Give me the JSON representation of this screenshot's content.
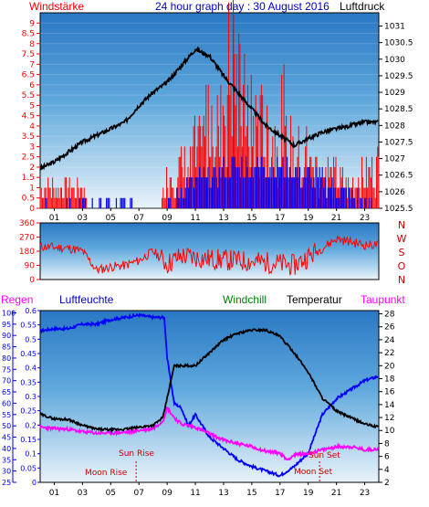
{
  "title": "24 hour graph day : 30 August 2016",
  "colors": {
    "wind": "#ff0000",
    "gust": "#0000ff",
    "pressure": "#000000",
    "direction": "#ff0000",
    "humidity": "#0000ff",
    "windchill": "#000000",
    "temperature": "#000000",
    "dewpoint": "#ff00ff",
    "rain": "#ff0000",
    "annotation": "#cc0000",
    "axis_wind": "#ff0000",
    "axis_humidity": "#0000ff",
    "axis_rain": "#0000ff",
    "axis_temp": "#000000",
    "dir_letters": "#cc0000"
  },
  "labels": {
    "windstaerke": "Windstärke",
    "luftdruck": "Luftdruck",
    "regen": "Regen",
    "luftfeuchte": "Luftfeuchte",
    "windchill": "Windchill",
    "temperatur": "Temperatur",
    "taupunkt": "Taupunkt"
  },
  "legend_colors": {
    "windstaerke": "#ff0000",
    "luftdruck": "#000000",
    "regen": "#ff00ff",
    "luftfeuchte": "#0000cc",
    "windchill": "#008000",
    "temperatur": "#000000",
    "taupunkt": "#ff00ff"
  },
  "chart_data": [
    {
      "type": "line",
      "name": "wind-pressure",
      "x_ticks": [
        "01",
        "03",
        "05",
        "07",
        "09",
        "11",
        "13",
        "15",
        "17",
        "19",
        "21",
        "23"
      ],
      "xlim": [
        0,
        24
      ],
      "y_left_ticks": [
        "0",
        "0.5",
        "1",
        "1.5",
        "2",
        "2.5",
        "3",
        "3.5",
        "4",
        "4.5",
        "5",
        "5.5",
        "6",
        "6.5",
        "7",
        "7.5",
        "8",
        "8.5",
        "9"
      ],
      "y_left_lim": [
        0,
        9.5
      ],
      "y_right_ticks": [
        "1025.5",
        "1026",
        "1026.5",
        "1027",
        "1027.5",
        "1028",
        "1028.5",
        "1029",
        "1029.5",
        "1030",
        "1030.5",
        "1031"
      ],
      "y_right_lim": [
        1025.5,
        1031.4
      ],
      "pressure": [
        [
          0,
          1026.7
        ],
        [
          1,
          1026.9
        ],
        [
          2,
          1027.2
        ],
        [
          3,
          1027.5
        ],
        [
          4,
          1027.7
        ],
        [
          5,
          1027.9
        ],
        [
          6,
          1028.1
        ],
        [
          7,
          1028.6
        ],
        [
          8,
          1029.0
        ],
        [
          9,
          1029.3
        ],
        [
          10,
          1029.8
        ],
        [
          11,
          1030.3
        ],
        [
          12,
          1030.1
        ],
        [
          13,
          1029.5
        ],
        [
          14,
          1029.0
        ],
        [
          15,
          1028.5
        ],
        [
          16,
          1028.0
        ],
        [
          17,
          1027.7
        ],
        [
          18,
          1027.4
        ],
        [
          19,
          1027.6
        ],
        [
          20,
          1027.8
        ],
        [
          21,
          1027.9
        ],
        [
          22,
          1028.0
        ],
        [
          23,
          1028.1
        ],
        [
          24,
          1028.1
        ]
      ],
      "wind_profile": [
        [
          0,
          1
        ],
        [
          3,
          1
        ],
        [
          3.5,
          0
        ],
        [
          8.5,
          0
        ],
        [
          9,
          1.5
        ],
        [
          11,
          2
        ],
        [
          12,
          4.5
        ],
        [
          13,
          5
        ],
        [
          13.7,
          7.5
        ],
        [
          14,
          5
        ],
        [
          15,
          4
        ],
        [
          17,
          3
        ],
        [
          19,
          2
        ],
        [
          21,
          1.5
        ],
        [
          22,
          1
        ],
        [
          24,
          2
        ]
      ],
      "gust_profile": [
        [
          0,
          0
        ],
        [
          9.5,
          0
        ],
        [
          10,
          1
        ],
        [
          12,
          1.5
        ],
        [
          14,
          2
        ],
        [
          17,
          2
        ],
        [
          19,
          1.5
        ],
        [
          21,
          1
        ],
        [
          22,
          0.5
        ],
        [
          24,
          0
        ]
      ]
    },
    {
      "type": "line",
      "name": "wind-direction",
      "x_ticks": [
        "01",
        "03",
        "05",
        "07",
        "09",
        "11",
        "13",
        "15",
        "17",
        "19",
        "21",
        "23"
      ],
      "y_ticks": [
        "0",
        "90",
        "180",
        "270",
        "360"
      ],
      "ylim": [
        0,
        360
      ],
      "direction_letters": [
        "N",
        "W",
        "S",
        "O",
        "N"
      ],
      "direction_profile": [
        [
          0,
          210
        ],
        [
          2,
          200
        ],
        [
          3,
          180
        ],
        [
          4,
          60
        ],
        [
          5,
          80
        ],
        [
          6,
          90
        ],
        [
          7,
          120
        ],
        [
          8,
          180
        ],
        [
          9,
          100
        ],
        [
          10,
          150
        ],
        [
          12,
          130
        ],
        [
          14,
          120
        ],
        [
          16,
          110
        ],
        [
          18,
          90
        ],
        [
          20,
          200
        ],
        [
          21,
          260
        ],
        [
          22,
          240
        ],
        [
          23,
          220
        ],
        [
          24,
          220
        ]
      ]
    },
    {
      "type": "line",
      "name": "temp-humidity",
      "x_ticks": [
        "01",
        "03",
        "05",
        "07",
        "09",
        "11",
        "13",
        "15",
        "17",
        "19",
        "21",
        "23"
      ],
      "y_humidity_ticks": [
        "25",
        "30",
        "35",
        "40",
        "45",
        "50",
        "55",
        "60",
        "65",
        "70",
        "75",
        "80",
        "85",
        "90",
        "95",
        "100"
      ],
      "y_humidity_lim": [
        25,
        101
      ],
      "y_rain_ticks": [
        "0",
        "0.05",
        "0.1",
        "0.15",
        "0.2",
        "0.25",
        "0.3",
        "0.35",
        "0.4",
        "0.45",
        "0.5",
        "0.55",
        "0.6"
      ],
      "y_rain_lim": [
        0,
        0.6
      ],
      "y_temp_ticks": [
        "2",
        "4",
        "6",
        "8",
        "10",
        "12",
        "14",
        "16",
        "18",
        "20",
        "22",
        "24",
        "26",
        "28"
      ],
      "y_temp_lim": [
        2,
        28.5
      ],
      "humidity": [
        [
          0,
          92
        ],
        [
          1,
          93
        ],
        [
          2,
          93
        ],
        [
          3,
          95
        ],
        [
          4,
          95
        ],
        [
          5,
          97
        ],
        [
          6,
          98
        ],
        [
          7,
          99
        ],
        [
          8,
          98
        ],
        [
          8.8,
          98
        ],
        [
          9,
          80
        ],
        [
          9.5,
          60
        ],
        [
          10,
          58
        ],
        [
          10.5,
          50
        ],
        [
          11,
          55
        ],
        [
          11.5,
          50
        ],
        [
          12,
          45
        ],
        [
          13,
          40
        ],
        [
          14,
          35
        ],
        [
          15,
          32
        ],
        [
          16,
          30
        ],
        [
          17,
          28
        ],
        [
          17.5,
          30
        ],
        [
          18,
          32
        ],
        [
          19,
          38
        ],
        [
          20,
          55
        ],
        [
          21,
          62
        ],
        [
          22,
          66
        ],
        [
          23,
          70
        ],
        [
          24,
          72
        ]
      ],
      "temperature": [
        [
          0,
          12.5
        ],
        [
          1,
          11.8
        ],
        [
          2,
          11.7
        ],
        [
          3,
          10.8
        ],
        [
          4,
          10.2
        ],
        [
          5,
          10.1
        ],
        [
          6,
          10.2
        ],
        [
          7,
          10.5
        ],
        [
          8,
          10.8
        ],
        [
          8.7,
          12
        ],
        [
          9,
          15
        ],
        [
          9.5,
          20
        ],
        [
          10,
          20
        ],
        [
          11,
          20
        ],
        [
          12,
          22
        ],
        [
          13,
          24
        ],
        [
          14,
          25
        ],
        [
          15,
          25.5
        ],
        [
          16,
          25.5
        ],
        [
          17,
          24.5
        ],
        [
          18,
          22
        ],
        [
          19,
          19
        ],
        [
          20,
          15
        ],
        [
          21,
          13
        ],
        [
          22,
          12
        ],
        [
          23,
          11
        ],
        [
          24,
          10.5
        ]
      ],
      "dewpoint": [
        [
          0,
          10.5
        ],
        [
          1,
          10.3
        ],
        [
          2,
          10.2
        ],
        [
          3,
          9.8
        ],
        [
          4,
          9.6
        ],
        [
          5,
          9.6
        ],
        [
          6,
          9.7
        ],
        [
          7,
          10
        ],
        [
          8,
          10.3
        ],
        [
          8.7,
          11.5
        ],
        [
          9,
          13.5
        ],
        [
          9.5,
          12
        ],
        [
          10,
          11
        ],
        [
          11,
          10.5
        ],
        [
          12,
          9.5
        ],
        [
          13,
          8.5
        ],
        [
          14,
          8
        ],
        [
          15,
          7.5
        ],
        [
          16,
          6.8
        ],
        [
          17,
          6.5
        ],
        [
          17.5,
          5.5
        ],
        [
          18,
          6.2
        ],
        [
          19,
          6.5
        ],
        [
          20,
          7
        ],
        [
          21,
          7.5
        ],
        [
          22,
          7.5
        ],
        [
          23,
          7
        ],
        [
          24,
          7.2
        ]
      ],
      "annotations": {
        "sun_rise": "Sun Rise",
        "moon_rise": "Moon Rise",
        "sun_set": "Sun Set",
        "moon_set": "Moon Set"
      },
      "events": {
        "sun_rise": 6.8,
        "moon_rise": 6.5,
        "sun_set": 19.8,
        "moon_set": 19.7
      }
    }
  ]
}
